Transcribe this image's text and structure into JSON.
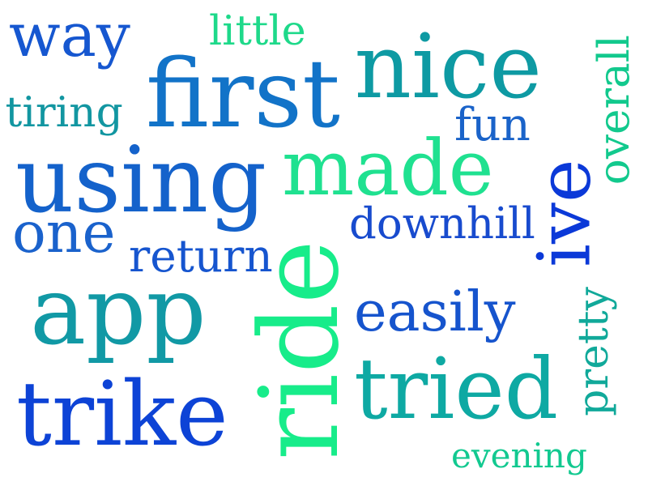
{
  "words": [
    {
      "text": "way",
      "color": "#1657d0",
      "rotation": "horizontal"
    },
    {
      "text": "little",
      "color": "#1ed98a",
      "rotation": "horizontal"
    },
    {
      "text": "nice",
      "color": "#0e9aa3",
      "rotation": "horizontal"
    },
    {
      "text": "first",
      "color": "#1273c8",
      "rotation": "horizontal"
    },
    {
      "text": "overall",
      "color": "#12c98d",
      "rotation": "vertical"
    },
    {
      "text": "tiring",
      "color": "#1296a1",
      "rotation": "horizontal"
    },
    {
      "text": "fun",
      "color": "#1a63c9",
      "rotation": "horizontal"
    },
    {
      "text": "using",
      "color": "#1462cb",
      "rotation": "horizontal"
    },
    {
      "text": "made",
      "color": "#1fe190",
      "rotation": "horizontal"
    },
    {
      "text": "ive",
      "color": "#0b39d8",
      "rotation": "vertical"
    },
    {
      "text": "one",
      "color": "#1a62cc",
      "rotation": "horizontal"
    },
    {
      "text": "downhill",
      "color": "#184bce",
      "rotation": "horizontal"
    },
    {
      "text": "return",
      "color": "#1655cf",
      "rotation": "horizontal"
    },
    {
      "text": "ride",
      "color": "#17ec8a",
      "rotation": "vertical"
    },
    {
      "text": "app",
      "color": "#1199a5",
      "rotation": "horizontal"
    },
    {
      "text": "easily",
      "color": "#1654cd",
      "rotation": "horizontal"
    },
    {
      "text": "pretty",
      "color": "#11a99a",
      "rotation": "vertical"
    },
    {
      "text": "trike",
      "color": "#0d43d6",
      "rotation": "horizontal"
    },
    {
      "text": "tried",
      "color": "#0ea9a3",
      "rotation": "horizontal"
    },
    {
      "text": "evening",
      "color": "#12c990",
      "rotation": "horizontal"
    }
  ]
}
